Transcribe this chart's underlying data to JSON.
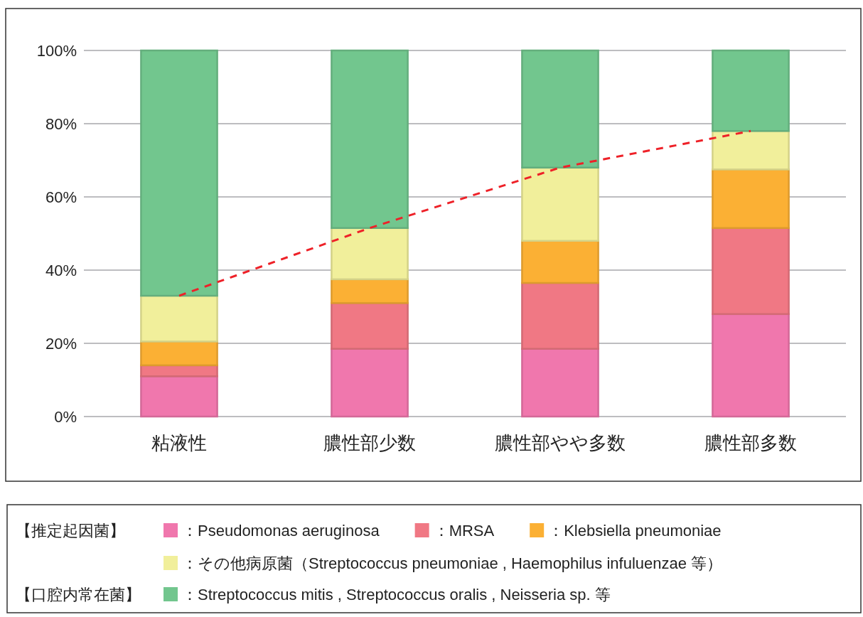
{
  "chart_data": {
    "type": "bar",
    "stacked": true,
    "categories": [
      "粘液性",
      "膿性部少数",
      "膿性部やや多数",
      "膿性部多数"
    ],
    "series": [
      {
        "name": "：Pseudomonas aeruginosa",
        "color": "#f077ad",
        "values": [
          11,
          18.5,
          18.5,
          28
        ]
      },
      {
        "name": "：MRSA",
        "color": "#f07884",
        "values": [
          3,
          12.5,
          18,
          23.5
        ]
      },
      {
        "name": "：Klebsiella pneumoniae",
        "color": "#fbb034",
        "values": [
          6.5,
          6.5,
          11.5,
          16
        ]
      },
      {
        "name": "：その他病原菌（Streptococcus pneumoniae , Haemophilus infuluenzae 等）",
        "color": "#f1ef9b",
        "values": [
          12.5,
          14,
          20,
          10.5
        ]
      },
      {
        "name": "：Streptococcus mitis , Streptococcus oralis , Neisseria sp. 等",
        "color": "#72c68e",
        "values": [
          67,
          48.5,
          32,
          22
        ]
      },
      {
        "type": "line",
        "color": "#ee2128",
        "line_style": "dashed",
        "marker": "none",
        "values": [
          33,
          51.5,
          68,
          78
        ]
      }
    ],
    "ylim": [
      0,
      100
    ],
    "yticks": [
      {
        "value": 0,
        "label": "0%"
      },
      {
        "value": 20,
        "label": "20%"
      },
      {
        "value": 40,
        "label": "40%"
      },
      {
        "value": 60,
        "label": "60%"
      },
      {
        "value": 80,
        "label": "80%"
      },
      {
        "value": 100,
        "label": "100%"
      }
    ],
    "grid": "y",
    "legend": "bottom",
    "annotations": [
      "【推定起因菌】",
      "【口腔内常在菌】"
    ]
  }
}
